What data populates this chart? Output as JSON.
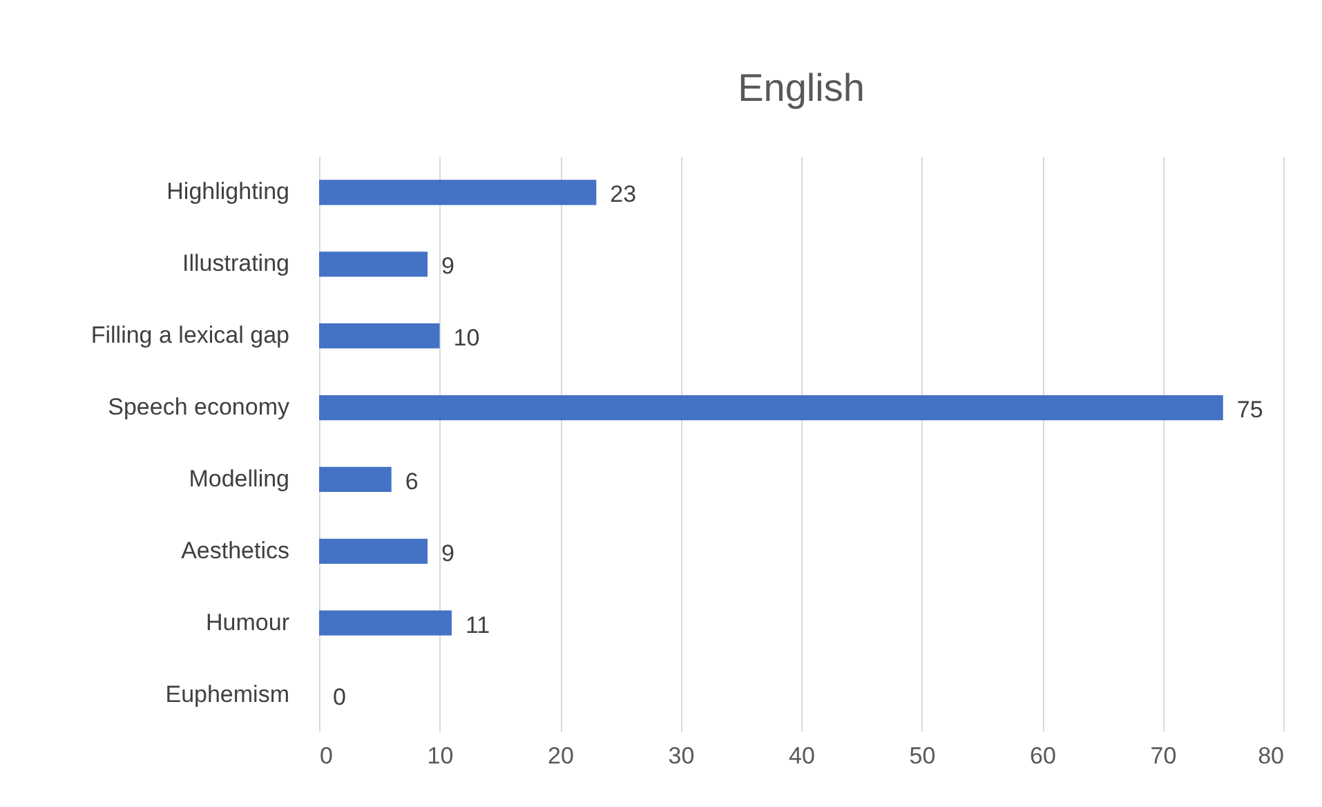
{
  "chart_data": {
    "type": "bar",
    "orientation": "horizontal",
    "title": "English",
    "categories": [
      "Highlighting",
      "Illustrating",
      "Filling a lexical gap",
      "Speech economy",
      "Modelling",
      "Aesthetics",
      "Humour",
      "Euphemism"
    ],
    "values": [
      23,
      9,
      10,
      75,
      6,
      9,
      11,
      0
    ],
    "color": "#4472c4",
    "xlim": [
      0,
      80
    ],
    "xticks": [
      0,
      10,
      20,
      30,
      40,
      50,
      60,
      70,
      80
    ],
    "grid": "x",
    "data_labels": true
  }
}
